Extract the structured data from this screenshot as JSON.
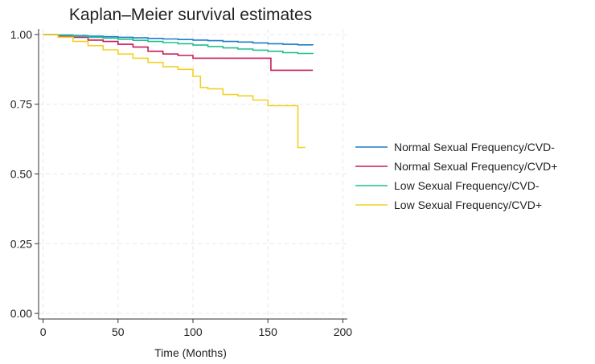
{
  "chart_data": {
    "type": "line",
    "title": "Kaplan–Meier survival estimates",
    "xlabel": "Time (Months)",
    "ylabel": "",
    "xlim": [
      -3,
      203
    ],
    "ylim": [
      -0.02,
      1.02
    ],
    "x_ticks": [
      0,
      50,
      100,
      150,
      200
    ],
    "x_tick_labels": [
      "0",
      "50",
      "100",
      "150",
      "200"
    ],
    "y_ticks": [
      0,
      0.25,
      0.5,
      0.75,
      1.0
    ],
    "y_tick_labels": [
      "0.00",
      "0.25",
      "0.50",
      "0.75",
      "1.00"
    ],
    "grid": true,
    "legend_position": "right",
    "series": [
      {
        "name": "Normal Sexual Frequency/CVD-",
        "color": "#1f7cc4",
        "x": [
          0,
          10,
          20,
          30,
          40,
          50,
          60,
          70,
          80,
          90,
          100,
          110,
          120,
          130,
          140,
          150,
          160,
          170,
          180
        ],
        "y": [
          1.0,
          0.998,
          0.996,
          0.994,
          0.992,
          0.99,
          0.988,
          0.986,
          0.984,
          0.982,
          0.98,
          0.978,
          0.975,
          0.973,
          0.97,
          0.967,
          0.965,
          0.963,
          0.962
        ]
      },
      {
        "name": "Normal Sexual Frequency/CVD+",
        "color": "#c81a5a",
        "x": [
          0,
          10,
          20,
          30,
          40,
          50,
          60,
          70,
          80,
          90,
          100,
          110,
          120,
          130,
          140,
          150,
          152,
          170,
          180
        ],
        "y": [
          1.0,
          0.995,
          0.99,
          0.98,
          0.975,
          0.965,
          0.955,
          0.94,
          0.93,
          0.925,
          0.915,
          0.915,
          0.915,
          0.915,
          0.915,
          0.915,
          0.872,
          0.872,
          0.872
        ]
      },
      {
        "name": "Low Sexual Frequency/CVD-",
        "color": "#1fbf8f",
        "x": [
          0,
          10,
          20,
          30,
          40,
          50,
          60,
          70,
          80,
          90,
          100,
          110,
          120,
          130,
          140,
          150,
          160,
          170,
          180
        ],
        "y": [
          1.0,
          0.997,
          0.994,
          0.99,
          0.987,
          0.983,
          0.979,
          0.975,
          0.971,
          0.967,
          0.962,
          0.957,
          0.952,
          0.948,
          0.944,
          0.94,
          0.935,
          0.932,
          0.93
        ]
      },
      {
        "name": "Low Sexual Frequency/CVD+",
        "color": "#f2d024",
        "x": [
          0,
          10,
          20,
          30,
          40,
          50,
          60,
          70,
          80,
          90,
          100,
          105,
          110,
          120,
          130,
          140,
          150,
          160,
          170,
          175
        ],
        "y": [
          1.0,
          0.99,
          0.975,
          0.96,
          0.945,
          0.93,
          0.915,
          0.9,
          0.885,
          0.875,
          0.85,
          0.81,
          0.805,
          0.785,
          0.78,
          0.765,
          0.745,
          0.745,
          0.595,
          0.595
        ]
      }
    ]
  }
}
